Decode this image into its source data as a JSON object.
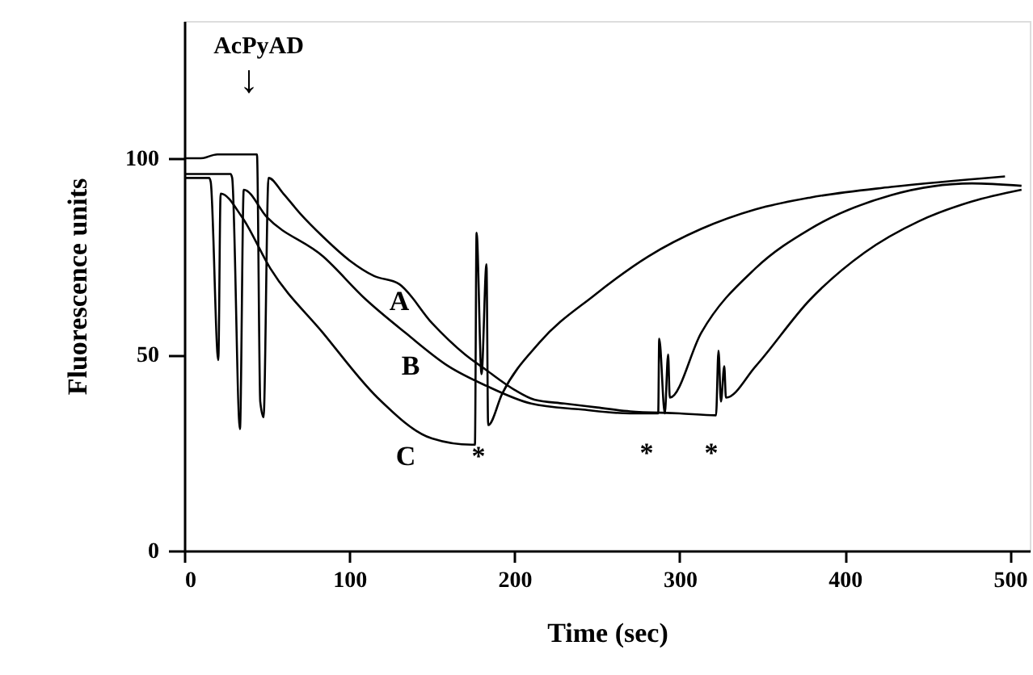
{
  "chart_data": {
    "type": "line",
    "xlabel": "Time (sec)",
    "ylabel": "Fluorescence units",
    "xlim": [
      0,
      512
    ],
    "ylim": [
      0,
      135
    ],
    "xticks": [
      0,
      100,
      200,
      300,
      400,
      500
    ],
    "yticks": [
      0,
      50,
      100
    ],
    "grid": false,
    "marker": "none",
    "line_style": "solid",
    "series": [
      {
        "name": "A",
        "color": "#000000",
        "x": [
          0,
          10,
          20,
          44,
          46,
          48,
          51,
          60,
          70,
          84,
          100,
          115,
          130,
          150,
          170,
          183,
          200,
          212,
          230,
          250,
          270,
          300,
          322,
          323.5,
          325,
          327,
          328,
          346,
          379,
          412,
          445,
          477,
          507
        ],
        "values": [
          100,
          100,
          101,
          101,
          38,
          34,
          95,
          91,
          86,
          80,
          74,
          70,
          68,
          58,
          50,
          46,
          41,
          38.5,
          37.5,
          36.5,
          35.5,
          35,
          34.5,
          51,
          38,
          47,
          39,
          47,
          64,
          76,
          84,
          89,
          92
        ]
      },
      {
        "name": "B",
        "color": "#000000",
        "x": [
          0,
          10,
          28,
          29,
          33.7,
          36,
          50,
          84,
          110,
          134,
          160,
          183,
          210,
          240,
          270,
          287,
          287.6,
          291,
          293,
          294,
          313,
          346,
          379,
          428,
          477,
          507
        ],
        "values": [
          96,
          96,
          96,
          95,
          31,
          92,
          85,
          75,
          64,
          55.5,
          47,
          42,
          37.5,
          36,
          35,
          35,
          54,
          35,
          50,
          39,
          55.5,
          72,
          82,
          90.6,
          93.6,
          93
        ]
      },
      {
        "name": "C",
        "color": "#000000",
        "x": [
          0,
          10,
          15,
          16,
          20.6,
          22,
          35,
          52,
          84,
          117,
          150,
          174,
          176,
          177,
          180,
          183,
          184,
          192.5,
          215,
          248,
          281,
          313,
          346,
          379,
          428,
          497
        ],
        "values": [
          95,
          95,
          95,
          94,
          48.6,
          91,
          85,
          72,
          55.5,
          39,
          28.6,
          27,
          27,
          81,
          45,
          73,
          32,
          40,
          53,
          65,
          75,
          82,
          87,
          90,
          92.7,
          95.4
        ]
      }
    ],
    "annotations": [
      "AcPyAD",
      "↓",
      "*",
      "*",
      "*"
    ]
  }
}
